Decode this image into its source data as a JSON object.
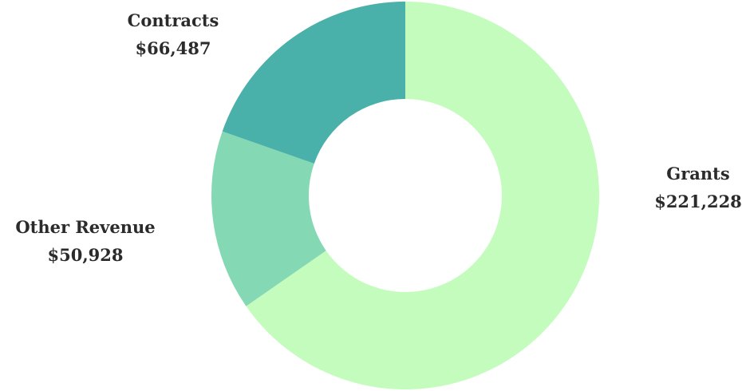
{
  "chart_data": {
    "type": "pie",
    "variant": "donut",
    "title": "",
    "slices": [
      {
        "label": "Grants",
        "value": 221228,
        "display_value": "$221,228",
        "color": "#c3fcbd"
      },
      {
        "label": "Other Revenue",
        "value": 50928,
        "display_value": "$50,928",
        "color": "#84d9b4"
      },
      {
        "label": "Contracts",
        "value": 66487,
        "display_value": "$66,487",
        "color": "#4ab1aa"
      }
    ],
    "start": "12 o'clock",
    "direction": "clockwise",
    "legend": "none",
    "labels": "outside"
  }
}
